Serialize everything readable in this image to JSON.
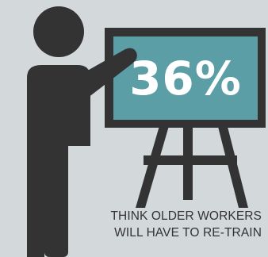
{
  "stat": {
    "value": "36%"
  },
  "caption": {
    "line1": "THINK OLDER WORKERS",
    "line2": "WILL HAVE TO RE-TRAIN"
  },
  "colors": {
    "background": "#d3d8db",
    "figure": "#333333",
    "board_fill": "#5b9ea5",
    "board_frame": "#333333",
    "stat_text": "#ffffff",
    "caption_text": "#333333"
  },
  "icons": {
    "presenter": "person-pointing-icon",
    "easel": "easel-board-icon"
  }
}
